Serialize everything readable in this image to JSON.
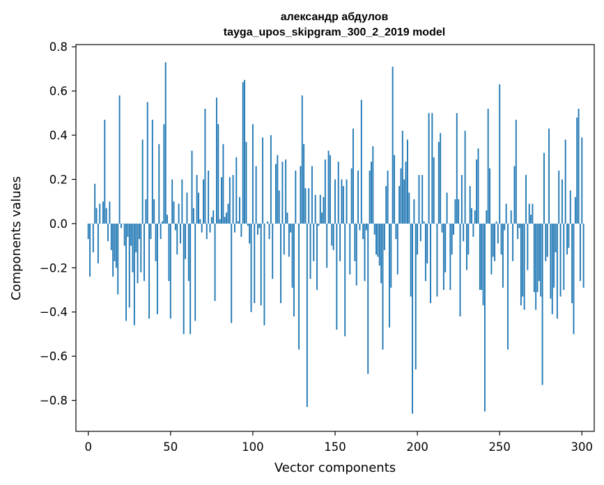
{
  "chart_data": {
    "type": "bar",
    "title_line1": "александр абдулов",
    "title_line2": "tayga_upos_skipgram_300_2_2019 model",
    "xlabel": "Vector components",
    "ylabel": "Components values",
    "xlim": [
      -7.5,
      307.5
    ],
    "ylim": [
      -0.94,
      0.81
    ],
    "xticks": [
      0,
      50,
      100,
      150,
      200,
      250,
      300
    ],
    "yticks": [
      -0.8,
      -0.6,
      -0.4,
      -0.2,
      0.0,
      0.2,
      0.4,
      0.6,
      0.8
    ],
    "ytick_labels": [
      "−0.8",
      "−0.6",
      "−0.4",
      "−0.2",
      "0.0",
      "0.2",
      "0.4",
      "0.6",
      "0.8"
    ],
    "bar_color": "#1f77b4",
    "values": [
      -0.07,
      -0.24,
      0.0,
      -0.13,
      0.18,
      0.07,
      -0.18,
      0.09,
      0.0,
      0.1,
      0.47,
      0.07,
      -0.08,
      0.1,
      -0.12,
      -0.24,
      -0.17,
      -0.2,
      -0.32,
      0.58,
      -0.02,
      0.0,
      -0.1,
      -0.44,
      -0.06,
      -0.38,
      -0.1,
      -0.22,
      -0.46,
      -0.13,
      -0.27,
      -0.07,
      -0.22,
      0.38,
      -0.26,
      0.11,
      0.55,
      -0.43,
      -0.07,
      0.47,
      0.11,
      -0.17,
      -0.41,
      0.36,
      -0.07,
      0.01,
      0.45,
      0.73,
      0.04,
      -0.26,
      -0.43,
      0.2,
      0.1,
      -0.03,
      -0.14,
      0.09,
      -0.09,
      0.2,
      -0.5,
      -0.16,
      0.14,
      -0.26,
      -0.5,
      0.33,
      0.07,
      -0.44,
      0.22,
      0.14,
      0.02,
      -0.04,
      0.2,
      0.52,
      -0.07,
      0.24,
      -0.04,
      0.03,
      0.06,
      -0.35,
      0.57,
      0.45,
      0.02,
      0.21,
      0.36,
      0.03,
      0.05,
      0.09,
      0.21,
      -0.45,
      0.22,
      -0.04,
      0.3,
      0.01,
      0.12,
      -0.06,
      0.64,
      0.65,
      0.37,
      -0.01,
      -0.09,
      -0.4,
      0.45,
      -0.36,
      0.26,
      -0.05,
      -0.02,
      -0.37,
      0.39,
      -0.46,
      0.0,
      0.01,
      -0.07,
      0.4,
      -0.25,
      0.0,
      0.27,
      0.31,
      0.15,
      -0.36,
      0.28,
      -0.14,
      0.29,
      0.05,
      -0.15,
      -0.04,
      -0.29,
      -0.42,
      0.24,
      0.0,
      -0.57,
      0.26,
      0.58,
      0.36,
      0.16,
      -0.83,
      0.16,
      -0.25,
      0.26,
      -0.17,
      0.13,
      -0.3,
      -0.01,
      0.13,
      0.05,
      0.12,
      0.29,
      -0.2,
      0.33,
      0.31,
      -0.1,
      -0.12,
      0.2,
      -0.48,
      0.28,
      -0.17,
      0.2,
      0.17,
      -0.51,
      0.2,
      0.0,
      -0.23,
      0.25,
      0.43,
      -0.17,
      -0.28,
      0.24,
      -0.03,
      0.56,
      -0.07,
      -0.26,
      -0.03,
      -0.68,
      0.24,
      0.28,
      0.35,
      -0.05,
      -0.14,
      -0.15,
      -0.19,
      -0.27,
      -0.57,
      -0.12,
      0.17,
      0.24,
      -0.47,
      -0.29,
      0.71,
      0.31,
      -0.07,
      -0.23,
      0.17,
      0.25,
      0.42,
      0.2,
      0.28,
      0.38,
      0.14,
      -0.33,
      -0.86,
      0.11,
      -0.66,
      -0.14,
      0.22,
      -0.08,
      0.22,
      0.01,
      -0.26,
      -0.18,
      0.5,
      -0.36,
      0.5,
      0.3,
      0.0,
      -0.33,
      0.37,
      0.41,
      -0.04,
      -0.3,
      -0.22,
      0.14,
      0.0,
      -0.3,
      -0.14,
      -0.05,
      0.11,
      0.5,
      0.11,
      -0.42,
      0.22,
      -0.08,
      0.42,
      -0.21,
      -0.14,
      0.17,
      0.07,
      -0.06,
      0.06,
      0.29,
      0.34,
      -0.3,
      -0.3,
      -0.37,
      -0.85,
      0.06,
      0.52,
      0.25,
      -0.23,
      -0.15,
      -0.17,
      0.01,
      -0.09,
      0.63,
      -0.14,
      -0.29,
      -0.03,
      0.09,
      -0.57,
      0.0,
      0.06,
      -0.17,
      0.26,
      0.47,
      -0.07,
      -0.02,
      -0.37,
      -0.33,
      -0.39,
      0.22,
      -0.21,
      0.09,
      0.04,
      0.09,
      -0.31,
      -0.39,
      -0.31,
      -0.26,
      -0.33,
      -0.73,
      0.32,
      -0.17,
      -0.15,
      0.43,
      -0.34,
      -0.41,
      -0.29,
      -0.13,
      -0.43,
      0.24,
      -0.33,
      0.2,
      -0.3,
      0.38,
      -0.14,
      -0.11,
      0.15,
      -0.36,
      -0.5,
      0.12,
      0.48,
      0.52,
      -0.26,
      0.39,
      -0.29
    ]
  }
}
